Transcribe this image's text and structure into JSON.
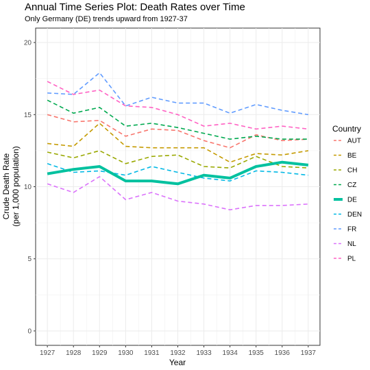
{
  "chart_data": {
    "type": "line",
    "title": "Annual Time Series Plot: Death Rates over Time",
    "subtitle": "Only Germany (DE) trends upward from 1927-37",
    "xlabel": "Year",
    "ylabel_line1": "Crude Death Rate",
    "ylabel_line2": "(per 1,000 population)",
    "legend_title": "Country",
    "legend_position": "right",
    "grid": true,
    "x": [
      1927,
      1928,
      1929,
      1930,
      1931,
      1932,
      1933,
      1934,
      1935,
      1936,
      1937
    ],
    "ylim": [
      -1,
      21
    ],
    "y_ticks": [
      0,
      5,
      10,
      15,
      20
    ],
    "series": [
      {
        "name": "AUT",
        "color": "#F8766D",
        "dash": true,
        "values": [
          15.0,
          14.5,
          14.6,
          13.5,
          14.0,
          13.9,
          13.2,
          12.7,
          13.6,
          13.2,
          13.3
        ]
      },
      {
        "name": "BE",
        "color": "#C49A00",
        "dash": true,
        "values": [
          13.0,
          12.8,
          14.4,
          12.8,
          12.7,
          12.7,
          12.7,
          11.7,
          12.3,
          12.2,
          12.5
        ]
      },
      {
        "name": "CH",
        "color": "#99A800",
        "dash": true,
        "values": [
          12.4,
          12.0,
          12.5,
          11.6,
          12.1,
          12.2,
          11.4,
          11.3,
          12.1,
          11.4,
          11.3
        ]
      },
      {
        "name": "CZ",
        "color": "#00A94F",
        "dash": true,
        "values": [
          16.0,
          15.1,
          15.5,
          14.2,
          14.4,
          14.1,
          13.7,
          13.3,
          13.5,
          13.3,
          13.3
        ]
      },
      {
        "name": "DE",
        "color": "#00C19F",
        "dash": false,
        "values": [
          10.9,
          11.2,
          11.4,
          10.4,
          10.4,
          10.2,
          10.8,
          10.6,
          11.4,
          11.7,
          11.5
        ]
      },
      {
        "name": "DEN",
        "color": "#00B8E5",
        "dash": true,
        "values": [
          11.6,
          11.0,
          11.1,
          10.8,
          11.4,
          11.0,
          10.6,
          10.4,
          11.1,
          11.0,
          10.8
        ]
      },
      {
        "name": "FR",
        "color": "#619CFF",
        "dash": true,
        "values": [
          16.5,
          16.4,
          17.9,
          15.6,
          16.2,
          15.8,
          15.8,
          15.1,
          15.7,
          15.3,
          15.0
        ]
      },
      {
        "name": "NL",
        "color": "#DB72FB",
        "dash": true,
        "values": [
          10.2,
          9.6,
          10.7,
          9.1,
          9.6,
          9.0,
          8.8,
          8.4,
          8.7,
          8.7,
          8.8
        ]
      },
      {
        "name": "PL",
        "color": "#FF61C3",
        "dash": true,
        "values": [
          17.3,
          16.4,
          16.7,
          15.6,
          15.5,
          15.0,
          14.2,
          14.4,
          14.0,
          14.2,
          14.0
        ]
      }
    ]
  }
}
